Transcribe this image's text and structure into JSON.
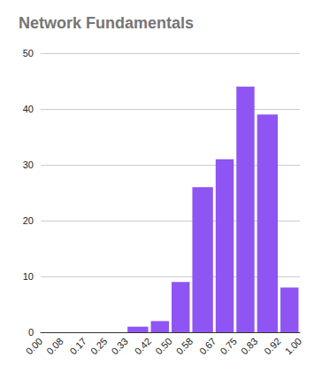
{
  "chart_data": {
    "type": "histogram",
    "title": "Network Fundamentals",
    "bins": [
      0.0,
      0.08,
      0.17,
      0.25,
      0.33,
      0.42,
      0.5,
      0.58,
      0.67,
      0.75,
      0.83,
      0.92,
      1.0
    ],
    "values": [
      0,
      0,
      0,
      0,
      1,
      2,
      9,
      26,
      31,
      44,
      39,
      8
    ],
    "color": "#8e55f2",
    "xlim": [
      0,
      1
    ],
    "xticks": [
      {
        "value": 0,
        "label": "0.00"
      },
      0.08,
      0.17,
      0.25,
      0.33,
      0.42,
      {
        "value": 0.5,
        "label": "0.50"
      },
      0.58,
      0.67,
      0.75,
      0.83,
      0.92,
      {
        "value": 1,
        "label": "1.00"
      }
    ],
    "ylim": [
      0,
      50
    ],
    "yticks": [
      0,
      10,
      20,
      30,
      40,
      50
    ],
    "grid": true
  }
}
